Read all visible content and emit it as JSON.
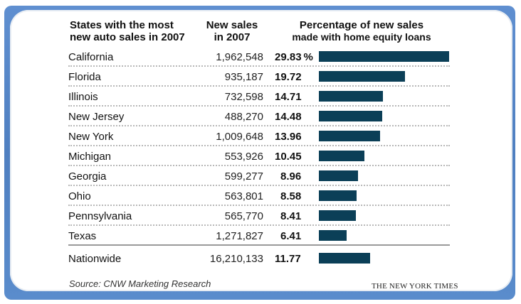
{
  "headers": {
    "state_line1": "States with the most",
    "state_line2": "new auto sales in 2007",
    "sales_line1": "New sales",
    "sales_line2": "in 2007",
    "pct_line1": "Percentage of new sales",
    "pct_line2": "made with home equity loans"
  },
  "chart_data": {
    "type": "bar",
    "orientation": "horizontal",
    "title": "Percentage of new sales made with home equity loans",
    "categories": [
      "California",
      "Florida",
      "Illinois",
      "New Jersey",
      "New York",
      "Michigan",
      "Georgia",
      "Ohio",
      "Pennsylvania",
      "Texas",
      "Nationwide"
    ],
    "series": [
      {
        "name": "New sales in 2007",
        "values": [
          "1,962,548",
          "935,187",
          "732,598",
          "488,270",
          "1,009,648",
          "553,926",
          "599,277",
          "563,801",
          "565,770",
          "1,271,827",
          "16,210,133"
        ]
      },
      {
        "name": "Percentage of new sales made with home equity loans",
        "values": [
          29.83,
          19.72,
          14.71,
          14.48,
          13.96,
          10.45,
          8.96,
          8.58,
          8.41,
          6.41,
          11.77
        ]
      }
    ],
    "value_labels": [
      "29.83",
      "19.72",
      "14.71",
      "14.48",
      "13.96",
      "10.45",
      "8.96",
      "8.58",
      "8.41",
      "6.41",
      "11.77"
    ],
    "first_label_suffix": "%",
    "bar_color": "#0b3f57",
    "xlim": [
      0,
      29.83
    ],
    "grid": false,
    "legend": "none"
  },
  "footer": {
    "source": "Source: CNW Marketing Research",
    "credit": "THE NEW YORK TIMES"
  }
}
